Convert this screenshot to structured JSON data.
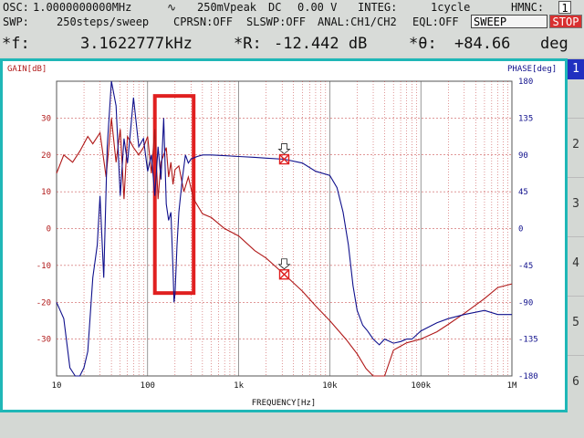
{
  "status": {
    "osc_label": "OSC:",
    "osc_freq": "1.0000000000MHz",
    "osc_wave": "∿",
    "osc_amp": "250mVpeak",
    "osc_dc": "DC",
    "osc_dc_value": "0.00 V",
    "integ_label": "INTEG:",
    "integ_value": "1cycle",
    "hmnc_label": "HMNC:",
    "hmnc_value": "1",
    "swp_label": "SWP:",
    "swp_value": "250steps/sweep",
    "cprsn": "CPRSN:OFF",
    "slswp": "SLSWP:OFF",
    "anal": "ANAL:CH1/CH2",
    "eql": "EQL:OFF",
    "sweep_button": "SWEEP",
    "stop_button": "STOP"
  },
  "readout": {
    "f_label": "*f:",
    "f_value": "3.1622777kHz",
    "r_label": "*R:",
    "r_value": "-12.442 dB",
    "theta_label": "*θ:",
    "theta_value": "+84.66",
    "theta_unit": "deg"
  },
  "tabs": [
    "1",
    "2",
    "3",
    "4",
    "5",
    "6"
  ],
  "colors": {
    "gain": "#b01818",
    "phase": "#10108c",
    "grid": "#c03030",
    "frame": "#1fb7b7",
    "highlight": "#e02020"
  },
  "chart_data": {
    "type": "line",
    "title": "",
    "xlabel": "FREQUENCY[Hz]",
    "ylabel_left": "GAIN[dB]",
    "ylabel_right": "PHASE[deg]",
    "x_scale": "log",
    "xlim": [
      10,
      1000000
    ],
    "ylim_left": [
      -40,
      40
    ],
    "ylim_right": [
      -180,
      180
    ],
    "x_tick_labels": [
      "10",
      "100",
      "1k",
      "10k",
      "100k",
      "1M"
    ],
    "x_tick_values": [
      10,
      100,
      1000,
      10000,
      100000,
      1000000
    ],
    "y_left_ticks": [
      30,
      20,
      10,
      0,
      -10,
      -20,
      -30
    ],
    "y_right_ticks": [
      180,
      135,
      90,
      45,
      0,
      -45,
      -90,
      -135,
      -180
    ],
    "grid": true,
    "series": [
      {
        "name": "GAIN[dB]",
        "axis": "left",
        "x": [
          10,
          12,
          15,
          18,
          22,
          25,
          30,
          35,
          40,
          45,
          50,
          55,
          60,
          70,
          80,
          90,
          100,
          110,
          120,
          130,
          140,
          150,
          160,
          170,
          180,
          190,
          200,
          220,
          250,
          280,
          320,
          400,
          500,
          700,
          1000,
          1500,
          2000,
          3162,
          5000,
          7000,
          10000,
          15000,
          20000,
          25000,
          30000,
          40000,
          50000,
          70000,
          100000,
          150000,
          200000,
          300000,
          500000,
          700000,
          1000000
        ],
        "values": [
          15,
          20,
          18,
          21,
          25,
          23,
          26,
          14,
          30,
          18,
          27,
          8,
          25,
          22,
          20,
          22,
          25,
          15,
          27,
          8,
          18,
          20,
          22,
          14,
          18,
          12,
          16,
          17,
          10,
          14,
          8,
          4,
          3,
          0,
          -2,
          -6,
          -8,
          -12.4,
          -17,
          -21,
          -25,
          -30,
          -34,
          -38,
          -40,
          -40,
          -33,
          -31,
          -30,
          -28,
          -26,
          -23,
          -19,
          -16,
          -15
        ]
      },
      {
        "name": "PHASE[deg]",
        "axis": "right",
        "x": [
          10,
          12,
          14,
          16,
          18,
          20,
          22,
          25,
          28,
          30,
          33,
          36,
          40,
          45,
          50,
          55,
          60,
          65,
          70,
          80,
          90,
          100,
          110,
          120,
          130,
          140,
          150,
          160,
          170,
          180,
          190,
          195,
          200,
          210,
          220,
          240,
          260,
          280,
          300,
          350,
          400,
          500,
          700,
          1000,
          1500,
          2000,
          3162,
          5000,
          7000,
          10000,
          12000,
          14000,
          16000,
          18000,
          20000,
          23000,
          26000,
          30000,
          35000,
          40000,
          50000,
          60000,
          70000,
          80000,
          100000,
          150000,
          200000,
          300000,
          500000,
          700000,
          1000000
        ],
        "values": [
          -90,
          -110,
          -170,
          -180,
          -180,
          -170,
          -150,
          -60,
          -20,
          40,
          -60,
          100,
          180,
          150,
          40,
          110,
          80,
          120,
          160,
          100,
          110,
          70,
          90,
          40,
          100,
          60,
          135,
          30,
          10,
          20,
          -50,
          -90,
          -80,
          -20,
          20,
          60,
          90,
          80,
          85,
          88,
          90,
          90,
          89,
          88,
          87,
          86,
          84.7,
          80,
          70,
          65,
          50,
          20,
          -20,
          -70,
          -100,
          -118,
          -125,
          -135,
          -142,
          -135,
          -140,
          -138,
          -135,
          -135,
          -125,
          -115,
          -110,
          -105,
          -100,
          -105,
          -105
        ]
      }
    ],
    "markers": [
      {
        "x": 3162,
        "y_gain": -12.442,
        "y_phase": 84.66
      }
    ],
    "highlight_region": {
      "x_from": 120,
      "x_to": 320,
      "y_from_gain": -17.5,
      "y_to_gain": 36
    }
  }
}
